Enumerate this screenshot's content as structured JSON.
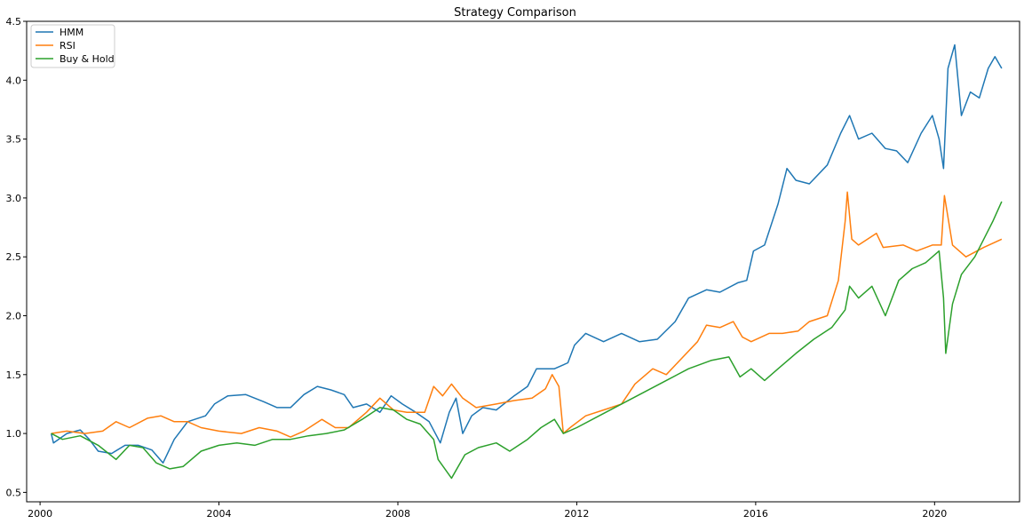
{
  "chart_data": {
    "type": "line",
    "title": "Strategy Comparison",
    "xlabel": "",
    "ylabel": "",
    "xlim": [
      1999.7,
      2021.9
    ],
    "ylim": [
      0.42,
      4.5
    ],
    "x_ticks": [
      2000,
      2004,
      2008,
      2012,
      2016,
      2020
    ],
    "x_tick_labels": [
      "2000",
      "2004",
      "2008",
      "2012",
      "2016",
      "2020"
    ],
    "y_ticks": [
      0.5,
      1.0,
      1.5,
      2.0,
      2.5,
      3.0,
      3.5,
      4.0,
      4.5
    ],
    "y_tick_labels": [
      "0.5",
      "1.0",
      "1.5",
      "2.0",
      "2.5",
      "3.0",
      "3.5",
      "4.0",
      "4.5"
    ],
    "grid": false,
    "legend_position": "top-left",
    "series": [
      {
        "name": "HMM",
        "color": "#1f77b4",
        "points": [
          [
            2000.25,
            1.0
          ],
          [
            2000.3,
            0.92
          ],
          [
            2000.6,
            1.0
          ],
          [
            2000.9,
            1.03
          ],
          [
            2001.1,
            0.95
          ],
          [
            2001.3,
            0.85
          ],
          [
            2001.6,
            0.83
          ],
          [
            2001.9,
            0.9
          ],
          [
            2002.2,
            0.9
          ],
          [
            2002.5,
            0.86
          ],
          [
            2002.75,
            0.75
          ],
          [
            2003.0,
            0.95
          ],
          [
            2003.3,
            1.1
          ],
          [
            2003.7,
            1.15
          ],
          [
            2003.9,
            1.25
          ],
          [
            2004.2,
            1.32
          ],
          [
            2004.6,
            1.33
          ],
          [
            2005.0,
            1.27
          ],
          [
            2005.3,
            1.22
          ],
          [
            2005.6,
            1.22
          ],
          [
            2005.9,
            1.33
          ],
          [
            2006.2,
            1.4
          ],
          [
            2006.5,
            1.37
          ],
          [
            2006.8,
            1.33
          ],
          [
            2007.0,
            1.22
          ],
          [
            2007.3,
            1.25
          ],
          [
            2007.6,
            1.18
          ],
          [
            2007.85,
            1.32
          ],
          [
            2008.1,
            1.25
          ],
          [
            2008.4,
            1.18
          ],
          [
            2008.7,
            1.1
          ],
          [
            2008.95,
            0.92
          ],
          [
            2009.15,
            1.18
          ],
          [
            2009.3,
            1.3
          ],
          [
            2009.45,
            1.0
          ],
          [
            2009.65,
            1.15
          ],
          [
            2009.9,
            1.22
          ],
          [
            2010.2,
            1.2
          ],
          [
            2010.6,
            1.32
          ],
          [
            2010.9,
            1.4
          ],
          [
            2011.1,
            1.55
          ],
          [
            2011.5,
            1.55
          ],
          [
            2011.8,
            1.6
          ],
          [
            2011.95,
            1.75
          ],
          [
            2012.2,
            1.85
          ],
          [
            2012.6,
            1.78
          ],
          [
            2013.0,
            1.85
          ],
          [
            2013.4,
            1.78
          ],
          [
            2013.8,
            1.8
          ],
          [
            2014.2,
            1.95
          ],
          [
            2014.5,
            2.15
          ],
          [
            2014.9,
            2.22
          ],
          [
            2015.2,
            2.2
          ],
          [
            2015.6,
            2.28
          ],
          [
            2015.8,
            2.3
          ],
          [
            2015.95,
            2.55
          ],
          [
            2016.2,
            2.6
          ],
          [
            2016.5,
            2.95
          ],
          [
            2016.7,
            3.25
          ],
          [
            2016.9,
            3.15
          ],
          [
            2017.2,
            3.12
          ],
          [
            2017.6,
            3.28
          ],
          [
            2017.9,
            3.55
          ],
          [
            2018.1,
            3.7
          ],
          [
            2018.3,
            3.5
          ],
          [
            2018.6,
            3.55
          ],
          [
            2018.9,
            3.42
          ],
          [
            2019.15,
            3.4
          ],
          [
            2019.4,
            3.3
          ],
          [
            2019.7,
            3.55
          ],
          [
            2019.95,
            3.7
          ],
          [
            2020.1,
            3.5
          ],
          [
            2020.2,
            3.25
          ],
          [
            2020.3,
            4.1
          ],
          [
            2020.45,
            4.3
          ],
          [
            2020.6,
            3.7
          ],
          [
            2020.8,
            3.9
          ],
          [
            2021.0,
            3.85
          ],
          [
            2021.2,
            4.1
          ],
          [
            2021.35,
            4.2
          ],
          [
            2021.5,
            4.1
          ]
        ]
      },
      {
        "name": "RSI",
        "color": "#ff7f0e",
        "points": [
          [
            2000.25,
            1.0
          ],
          [
            2000.6,
            1.02
          ],
          [
            2001.0,
            1.0
          ],
          [
            2001.4,
            1.02
          ],
          [
            2001.7,
            1.1
          ],
          [
            2002.0,
            1.05
          ],
          [
            2002.4,
            1.13
          ],
          [
            2002.7,
            1.15
          ],
          [
            2003.0,
            1.1
          ],
          [
            2003.3,
            1.1
          ],
          [
            2003.6,
            1.05
          ],
          [
            2004.0,
            1.02
          ],
          [
            2004.5,
            1.0
          ],
          [
            2004.9,
            1.05
          ],
          [
            2005.3,
            1.02
          ],
          [
            2005.6,
            0.97
          ],
          [
            2005.9,
            1.02
          ],
          [
            2006.3,
            1.12
          ],
          [
            2006.6,
            1.05
          ],
          [
            2006.9,
            1.05
          ],
          [
            2007.3,
            1.18
          ],
          [
            2007.6,
            1.3
          ],
          [
            2007.9,
            1.2
          ],
          [
            2008.2,
            1.18
          ],
          [
            2008.6,
            1.18
          ],
          [
            2008.8,
            1.4
          ],
          [
            2009.0,
            1.32
          ],
          [
            2009.2,
            1.42
          ],
          [
            2009.45,
            1.3
          ],
          [
            2009.75,
            1.22
          ],
          [
            2010.2,
            1.25
          ],
          [
            2010.6,
            1.28
          ],
          [
            2011.0,
            1.3
          ],
          [
            2011.3,
            1.38
          ],
          [
            2011.45,
            1.5
          ],
          [
            2011.6,
            1.4
          ],
          [
            2011.7,
            1.0
          ],
          [
            2011.85,
            1.05
          ],
          [
            2012.2,
            1.15
          ],
          [
            2012.6,
            1.2
          ],
          [
            2013.0,
            1.25
          ],
          [
            2013.3,
            1.42
          ],
          [
            2013.7,
            1.55
          ],
          [
            2014.0,
            1.5
          ],
          [
            2014.3,
            1.62
          ],
          [
            2014.7,
            1.78
          ],
          [
            2014.9,
            1.92
          ],
          [
            2015.2,
            1.9
          ],
          [
            2015.5,
            1.95
          ],
          [
            2015.7,
            1.82
          ],
          [
            2015.9,
            1.78
          ],
          [
            2016.3,
            1.85
          ],
          [
            2016.6,
            1.85
          ],
          [
            2016.95,
            1.87
          ],
          [
            2017.2,
            1.95
          ],
          [
            2017.6,
            2.0
          ],
          [
            2017.85,
            2.3
          ],
          [
            2018.0,
            2.8
          ],
          [
            2018.05,
            3.05
          ],
          [
            2018.15,
            2.65
          ],
          [
            2018.3,
            2.6
          ],
          [
            2018.7,
            2.7
          ],
          [
            2018.85,
            2.58
          ],
          [
            2019.3,
            2.6
          ],
          [
            2019.6,
            2.55
          ],
          [
            2019.95,
            2.6
          ],
          [
            2020.15,
            2.6
          ],
          [
            2020.22,
            3.02
          ],
          [
            2020.4,
            2.6
          ],
          [
            2020.7,
            2.5
          ],
          [
            2021.1,
            2.58
          ],
          [
            2021.5,
            2.65
          ]
        ]
      },
      {
        "name": "Buy & Hold",
        "color": "#2ca02c",
        "points": [
          [
            2000.25,
            1.0
          ],
          [
            2000.5,
            0.95
          ],
          [
            2000.9,
            0.98
          ],
          [
            2001.3,
            0.9
          ],
          [
            2001.7,
            0.78
          ],
          [
            2002.0,
            0.9
          ],
          [
            2002.3,
            0.88
          ],
          [
            2002.6,
            0.75
          ],
          [
            2002.9,
            0.7
          ],
          [
            2003.2,
            0.72
          ],
          [
            2003.6,
            0.85
          ],
          [
            2004.0,
            0.9
          ],
          [
            2004.4,
            0.92
          ],
          [
            2004.8,
            0.9
          ],
          [
            2005.2,
            0.95
          ],
          [
            2005.6,
            0.95
          ],
          [
            2006.0,
            0.98
          ],
          [
            2006.4,
            1.0
          ],
          [
            2006.8,
            1.03
          ],
          [
            2007.2,
            1.12
          ],
          [
            2007.6,
            1.22
          ],
          [
            2007.9,
            1.2
          ],
          [
            2008.2,
            1.12
          ],
          [
            2008.5,
            1.08
          ],
          [
            2008.8,
            0.95
          ],
          [
            2008.9,
            0.78
          ],
          [
            2009.2,
            0.62
          ],
          [
            2009.5,
            0.82
          ],
          [
            2009.8,
            0.88
          ],
          [
            2010.2,
            0.92
          ],
          [
            2010.5,
            0.85
          ],
          [
            2010.9,
            0.95
          ],
          [
            2011.2,
            1.05
          ],
          [
            2011.5,
            1.12
          ],
          [
            2011.7,
            1.0
          ],
          [
            2012.0,
            1.05
          ],
          [
            2012.5,
            1.15
          ],
          [
            2013.0,
            1.25
          ],
          [
            2013.5,
            1.35
          ],
          [
            2014.0,
            1.45
          ],
          [
            2014.5,
            1.55
          ],
          [
            2015.0,
            1.62
          ],
          [
            2015.4,
            1.65
          ],
          [
            2015.65,
            1.48
          ],
          [
            2015.9,
            1.55
          ],
          [
            2016.2,
            1.45
          ],
          [
            2016.5,
            1.55
          ],
          [
            2016.9,
            1.68
          ],
          [
            2017.3,
            1.8
          ],
          [
            2017.7,
            1.9
          ],
          [
            2018.0,
            2.05
          ],
          [
            2018.1,
            2.25
          ],
          [
            2018.3,
            2.15
          ],
          [
            2018.6,
            2.25
          ],
          [
            2018.9,
            2.0
          ],
          [
            2019.2,
            2.3
          ],
          [
            2019.5,
            2.4
          ],
          [
            2019.8,
            2.45
          ],
          [
            2020.1,
            2.55
          ],
          [
            2020.2,
            2.15
          ],
          [
            2020.25,
            1.68
          ],
          [
            2020.4,
            2.1
          ],
          [
            2020.6,
            2.35
          ],
          [
            2020.9,
            2.5
          ],
          [
            2021.1,
            2.65
          ],
          [
            2021.3,
            2.8
          ],
          [
            2021.5,
            2.97
          ]
        ]
      }
    ]
  }
}
